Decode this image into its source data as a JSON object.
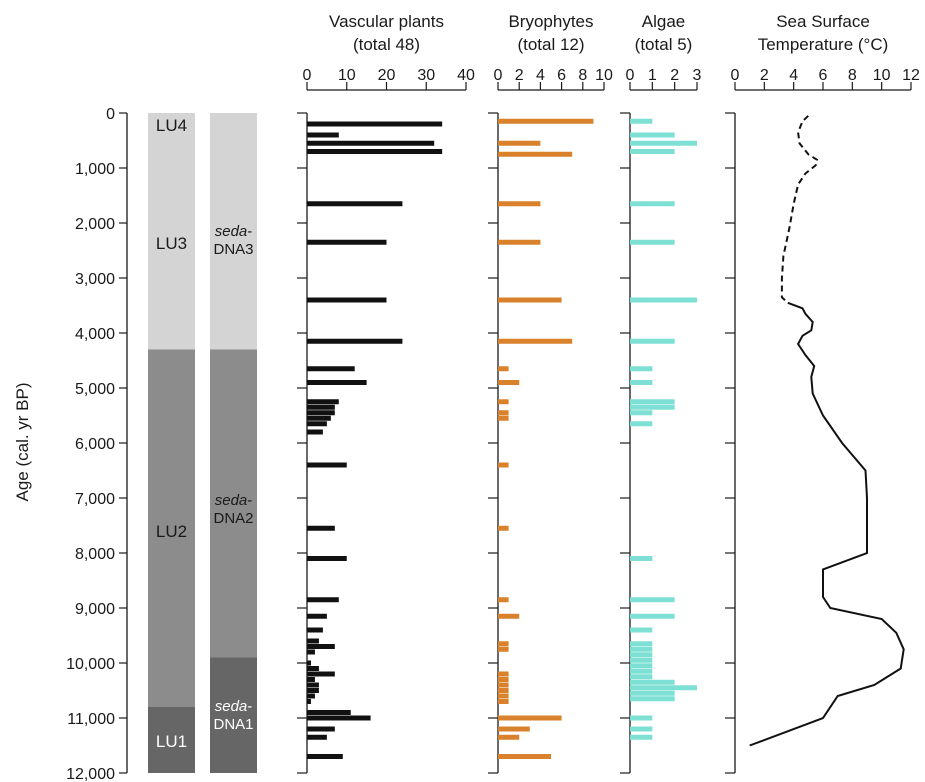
{
  "chart_data": {
    "type": "bar",
    "age_axis": {
      "label": "Age (cal. yr BP)",
      "ylim": [
        0,
        12000
      ],
      "ticks": [
        0,
        1000,
        2000,
        3000,
        4000,
        5000,
        6000,
        7000,
        8000,
        9000,
        10000,
        11000,
        12000
      ],
      "tick_labels": [
        "0",
        "1,000",
        "2,000",
        "3,000",
        "4,000",
        "5,000",
        "6,000",
        "7,000",
        "8,000",
        "9,000",
        "10,000",
        "11,000",
        "12,000"
      ]
    },
    "lithology": [
      {
        "label": "LU4",
        "from": 0,
        "to": 400,
        "color": "#d4d4d4"
      },
      {
        "label": "LU3",
        "from": 400,
        "to": 4300,
        "color": "#d4d4d4"
      },
      {
        "label": "LU2",
        "from": 4300,
        "to": 10800,
        "color": "#8c8c8c"
      },
      {
        "label": "LU1",
        "from": 10800,
        "to": 12000,
        "color": "#666666"
      }
    ],
    "sedadna_zones": [
      {
        "italic": "seda",
        "suffix": "-",
        "label": "DNA3",
        "from": 0,
        "to": 4300,
        "color": "#d4d4d4"
      },
      {
        "italic": "seda",
        "suffix": "-",
        "label": "DNA2",
        "from": 4300,
        "to": 9900,
        "color": "#8c8c8c"
      },
      {
        "italic": "seda",
        "suffix": "-",
        "label": "DNA1",
        "from": 9900,
        "to": 12000,
        "color": "#666666"
      }
    ],
    "panels": [
      {
        "name": "Vascular plants",
        "subtitle": "(total 48)",
        "xlim": [
          0,
          40
        ],
        "xticks": [
          0,
          10,
          20,
          30,
          40
        ],
        "color": "#111111",
        "bars": [
          {
            "age": 200,
            "value": 34
          },
          {
            "age": 400,
            "value": 8
          },
          {
            "age": 550,
            "value": 32
          },
          {
            "age": 700,
            "value": 34
          },
          {
            "age": 1650,
            "value": 24
          },
          {
            "age": 2350,
            "value": 20
          },
          {
            "age": 3400,
            "value": 20
          },
          {
            "age": 4150,
            "value": 24
          },
          {
            "age": 4650,
            "value": 12
          },
          {
            "age": 4900,
            "value": 15
          },
          {
            "age": 5250,
            "value": 8
          },
          {
            "age": 5350,
            "value": 7
          },
          {
            "age": 5450,
            "value": 7
          },
          {
            "age": 5550,
            "value": 6
          },
          {
            "age": 5650,
            "value": 5
          },
          {
            "age": 5800,
            "value": 4
          },
          {
            "age": 6400,
            "value": 10
          },
          {
            "age": 7550,
            "value": 7
          },
          {
            "age": 8100,
            "value": 10
          },
          {
            "age": 8850,
            "value": 8
          },
          {
            "age": 9150,
            "value": 5
          },
          {
            "age": 9400,
            "value": 4
          },
          {
            "age": 9600,
            "value": 3
          },
          {
            "age": 9700,
            "value": 7
          },
          {
            "age": 9800,
            "value": 2
          },
          {
            "age": 10000,
            "value": 1
          },
          {
            "age": 10100,
            "value": 3
          },
          {
            "age": 10200,
            "value": 7
          },
          {
            "age": 10300,
            "value": 2
          },
          {
            "age": 10400,
            "value": 3
          },
          {
            "age": 10500,
            "value": 3
          },
          {
            "age": 10600,
            "value": 2
          },
          {
            "age": 10700,
            "value": 1
          },
          {
            "age": 10900,
            "value": 11
          },
          {
            "age": 11000,
            "value": 16
          },
          {
            "age": 11200,
            "value": 7
          },
          {
            "age": 11350,
            "value": 5
          },
          {
            "age": 11700,
            "value": 9
          }
        ]
      },
      {
        "name": "Bryophytes",
        "subtitle": "(total 12)",
        "xlim": [
          0,
          10
        ],
        "xticks": [
          0,
          2,
          4,
          6,
          8,
          10
        ],
        "color": "#d9822b",
        "bars": [
          {
            "age": 150,
            "value": 9
          },
          {
            "age": 550,
            "value": 4
          },
          {
            "age": 750,
            "value": 7
          },
          {
            "age": 1650,
            "value": 4
          },
          {
            "age": 2350,
            "value": 4
          },
          {
            "age": 3400,
            "value": 6
          },
          {
            "age": 4150,
            "value": 7
          },
          {
            "age": 4650,
            "value": 1
          },
          {
            "age": 4900,
            "value": 2
          },
          {
            "age": 5250,
            "value": 1
          },
          {
            "age": 5450,
            "value": 1
          },
          {
            "age": 5550,
            "value": 1
          },
          {
            "age": 6400,
            "value": 1
          },
          {
            "age": 7550,
            "value": 1
          },
          {
            "age": 8850,
            "value": 1
          },
          {
            "age": 9150,
            "value": 2
          },
          {
            "age": 9650,
            "value": 1
          },
          {
            "age": 9750,
            "value": 1
          },
          {
            "age": 10200,
            "value": 1
          },
          {
            "age": 10300,
            "value": 1
          },
          {
            "age": 10400,
            "value": 1
          },
          {
            "age": 10500,
            "value": 1
          },
          {
            "age": 10600,
            "value": 1
          },
          {
            "age": 10700,
            "value": 1
          },
          {
            "age": 11000,
            "value": 6
          },
          {
            "age": 11200,
            "value": 3
          },
          {
            "age": 11350,
            "value": 2
          },
          {
            "age": 11700,
            "value": 5
          }
        ]
      },
      {
        "name": "Algae",
        "subtitle": "(total 5)",
        "xlim": [
          0,
          3
        ],
        "xticks": [
          0,
          1,
          2,
          3
        ],
        "color": "#7ee0d4",
        "bars": [
          {
            "age": 150,
            "value": 1
          },
          {
            "age": 400,
            "value": 2
          },
          {
            "age": 550,
            "value": 3
          },
          {
            "age": 700,
            "value": 2
          },
          {
            "age": 1650,
            "value": 2
          },
          {
            "age": 2350,
            "value": 2
          },
          {
            "age": 3400,
            "value": 3
          },
          {
            "age": 4150,
            "value": 2
          },
          {
            "age": 4650,
            "value": 1
          },
          {
            "age": 4900,
            "value": 1
          },
          {
            "age": 5250,
            "value": 2
          },
          {
            "age": 5350,
            "value": 2
          },
          {
            "age": 5450,
            "value": 1
          },
          {
            "age": 5650,
            "value": 1
          },
          {
            "age": 8100,
            "value": 1
          },
          {
            "age": 8850,
            "value": 2
          },
          {
            "age": 9150,
            "value": 2
          },
          {
            "age": 9400,
            "value": 1
          },
          {
            "age": 9650,
            "value": 1
          },
          {
            "age": 9750,
            "value": 1
          },
          {
            "age": 9850,
            "value": 1
          },
          {
            "age": 9950,
            "value": 1
          },
          {
            "age": 10050,
            "value": 1
          },
          {
            "age": 10150,
            "value": 1
          },
          {
            "age": 10250,
            "value": 1
          },
          {
            "age": 10350,
            "value": 2
          },
          {
            "age": 10450,
            "value": 3
          },
          {
            "age": 10550,
            "value": 2
          },
          {
            "age": 10650,
            "value": 2
          },
          {
            "age": 11000,
            "value": 1
          },
          {
            "age": 11200,
            "value": 1
          },
          {
            "age": 11350,
            "value": 1
          }
        ]
      }
    ],
    "sst": {
      "name": "Sea Surface",
      "subtitle": "Temperature (°C)",
      "xlim": [
        0,
        12
      ],
      "xticks": [
        0,
        2,
        4,
        6,
        8,
        10,
        12
      ],
      "dashed": [
        {
          "age": 50,
          "t": 5.0
        },
        {
          "age": 150,
          "t": 4.6
        },
        {
          "age": 350,
          "t": 4.3
        },
        {
          "age": 550,
          "t": 4.4
        },
        {
          "age": 750,
          "t": 5.0
        },
        {
          "age": 850,
          "t": 5.6
        },
        {
          "age": 950,
          "t": 5.5
        },
        {
          "age": 1100,
          "t": 4.8
        },
        {
          "age": 1300,
          "t": 4.3
        },
        {
          "age": 1650,
          "t": 4.0
        },
        {
          "age": 2100,
          "t": 3.7
        },
        {
          "age": 2600,
          "t": 3.3
        },
        {
          "age": 3000,
          "t": 3.2
        },
        {
          "age": 3350,
          "t": 3.2
        },
        {
          "age": 3450,
          "t": 3.6
        }
      ],
      "solid": [
        {
          "age": 3450,
          "t": 3.6
        },
        {
          "age": 3550,
          "t": 4.6
        },
        {
          "age": 3650,
          "t": 4.8
        },
        {
          "age": 3800,
          "t": 5.3
        },
        {
          "age": 3950,
          "t": 5.2
        },
        {
          "age": 4050,
          "t": 4.6
        },
        {
          "age": 4200,
          "t": 4.3
        },
        {
          "age": 4400,
          "t": 4.8
        },
        {
          "age": 4600,
          "t": 5.4
        },
        {
          "age": 4800,
          "t": 5.2
        },
        {
          "age": 5100,
          "t": 5.3
        },
        {
          "age": 5500,
          "t": 6.0
        },
        {
          "age": 6000,
          "t": 7.3
        },
        {
          "age": 6500,
          "t": 8.9
        },
        {
          "age": 7000,
          "t": 9.0
        },
        {
          "age": 7500,
          "t": 9.0
        },
        {
          "age": 8000,
          "t": 9.0
        },
        {
          "age": 8300,
          "t": 6.0
        },
        {
          "age": 8800,
          "t": 6.0
        },
        {
          "age": 9000,
          "t": 6.5
        },
        {
          "age": 9200,
          "t": 10.0
        },
        {
          "age": 9450,
          "t": 11.0
        },
        {
          "age": 9750,
          "t": 11.5
        },
        {
          "age": 10100,
          "t": 11.3
        },
        {
          "age": 10400,
          "t": 9.5
        },
        {
          "age": 10600,
          "t": 7.0
        },
        {
          "age": 11000,
          "t": 6.0
        },
        {
          "age": 11500,
          "t": 1.0
        }
      ]
    }
  }
}
